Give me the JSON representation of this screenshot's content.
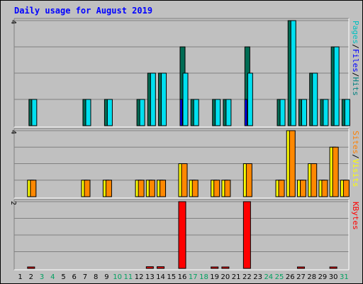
{
  "chart_data": {
    "type": "bar",
    "title": "Daily usage for August 2019",
    "categories": [
      "1",
      "2",
      "3",
      "4",
      "5",
      "6",
      "7",
      "8",
      "9",
      "10",
      "11",
      "12",
      "13",
      "14",
      "15",
      "16",
      "17",
      "18",
      "19",
      "20",
      "21",
      "22",
      "23",
      "24",
      "25",
      "26",
      "27",
      "28",
      "29",
      "30",
      "31"
    ],
    "weekend_days": [
      3,
      4,
      10,
      11,
      17,
      18,
      24,
      25,
      31
    ],
    "panels": [
      {
        "max_label": "4",
        "ylim": [
          0,
          4
        ],
        "legend": [
          {
            "name": "Hits",
            "color": "#008080"
          },
          {
            "sep": "/"
          },
          {
            "name": "Files",
            "color": "#0000ff"
          },
          {
            "sep": "/"
          },
          {
            "name": "Pages",
            "color": "#00c0c0"
          }
        ],
        "series": [
          {
            "name": "Hits",
            "color": "#006c54",
            "values": [
              0,
              1,
              0,
              0,
              0,
              0,
              1,
              0,
              1,
              0,
              0,
              1,
              2,
              2,
              0,
              3,
              1,
              0,
              1,
              1,
              0,
              3,
              0,
              0,
              1,
              4,
              1,
              2,
              1,
              3,
              1
            ]
          },
          {
            "name": "Files",
            "color": "#0000ff",
            "values": [
              0,
              0,
              0,
              0,
              0,
              0,
              0,
              0,
              0,
              0,
              0,
              0,
              0,
              0,
              0,
              1,
              0,
              0,
              0,
              0,
              0,
              1,
              0,
              0,
              0,
              0,
              0,
              0,
              0,
              0,
              0
            ]
          },
          {
            "name": "Pages",
            "color": "#00e0f0",
            "values": [
              0,
              1,
              0,
              0,
              0,
              0,
              1,
              0,
              1,
              0,
              0,
              1,
              2,
              2,
              0,
              2,
              1,
              0,
              1,
              1,
              0,
              2,
              0,
              0,
              1,
              4,
              1,
              2,
              1,
              3,
              1
            ]
          }
        ]
      },
      {
        "max_label": "4",
        "ylim": [
          0,
          4
        ],
        "legend": [
          {
            "name": "Visits",
            "color": "#ffff00"
          },
          {
            "sep": "/"
          },
          {
            "name": "Sites",
            "color": "#ff8000"
          }
        ],
        "series": [
          {
            "name": "Visits",
            "color": "#ffff00",
            "values": [
              0,
              1,
              0,
              0,
              0,
              0,
              1,
              0,
              1,
              0,
              0,
              1,
              1,
              1,
              0,
              2,
              1,
              0,
              1,
              1,
              0,
              2,
              0,
              0,
              1,
              4,
              1,
              2,
              1,
              3,
              1
            ]
          },
          {
            "name": "Sites",
            "color": "#ff8800",
            "values": [
              0,
              1,
              0,
              0,
              0,
              0,
              1,
              0,
              1,
              0,
              0,
              1,
              1,
              1,
              0,
              2,
              1,
              0,
              1,
              1,
              0,
              2,
              0,
              0,
              1,
              4,
              1,
              2,
              1,
              3,
              1
            ]
          }
        ]
      },
      {
        "max_label": "2",
        "ylim": [
          0,
          2
        ],
        "legend": [
          {
            "name": "KBytes",
            "color": "#ff0000"
          }
        ],
        "series": [
          {
            "name": "KBytes",
            "color": "#ff0000",
            "values": [
              0,
              0.03,
              0,
              0,
              0,
              0,
              0,
              0,
              0,
              0,
              0,
              0,
              0.05,
              0.05,
              0,
              2,
              0,
              0,
              0.03,
              0.03,
              0,
              2,
              0,
              0,
              0,
              0,
              0.03,
              0,
              0,
              0.03,
              0
            ]
          }
        ]
      }
    ]
  },
  "colors": {
    "background": "#c0c0c0",
    "title": "#0000ff",
    "plot_bg": "#c0c0c0",
    "grid": "#808080",
    "border_dark": "#808080",
    "border_light": "#ffffff",
    "weekday_label": "#000000",
    "weekend_label": "#00a060"
  }
}
